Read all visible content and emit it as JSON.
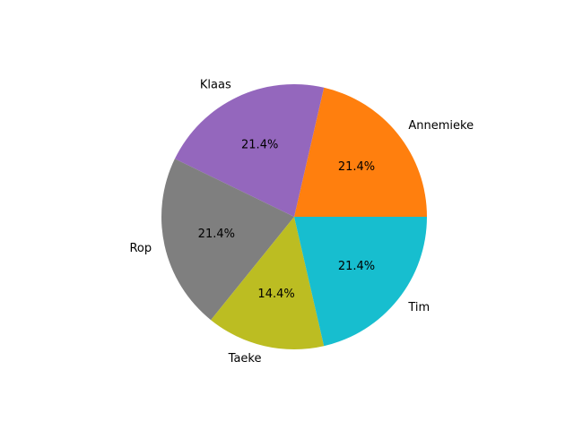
{
  "chart_data": {
    "type": "pie",
    "title": "",
    "labels": [
      "Annemieke",
      "Klaas",
      "Rop",
      "Taeke",
      "Tim"
    ],
    "values": [
      21.4,
      21.4,
      21.4,
      14.4,
      21.4
    ],
    "percent_labels": [
      "21.4%",
      "21.4%",
      "21.4%",
      "14.4%",
      "21.4%"
    ],
    "colors": [
      "#ff7f0e",
      "#9467bd",
      "#7f7f7f",
      "#bcbd22",
      "#17becf"
    ],
    "start_angle_deg": 0,
    "direction": "counterclockwise",
    "legend": "none"
  }
}
